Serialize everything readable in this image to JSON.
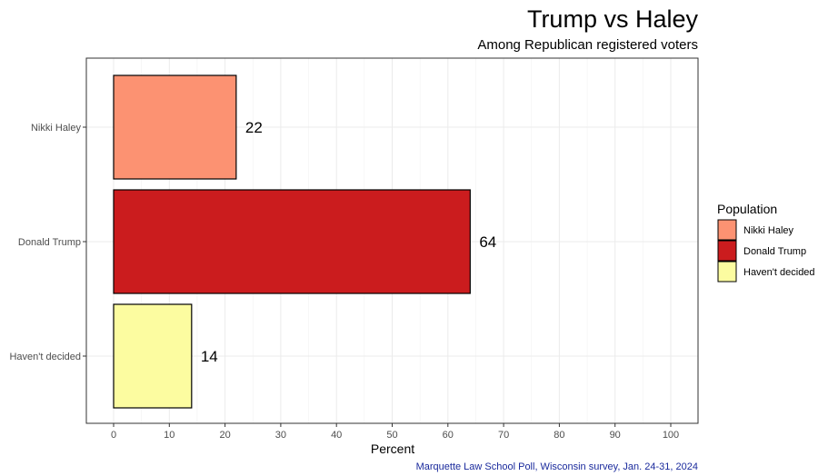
{
  "chart_data": {
    "type": "bar",
    "orientation": "horizontal",
    "title": "Trump vs Haley",
    "subtitle": "Among Republican registered voters",
    "categories": [
      "Nikki Haley",
      "Donald Trump",
      "Haven't decided"
    ],
    "values": [
      22,
      64,
      14
    ],
    "value_labels": [
      "22",
      "64",
      "14"
    ],
    "colors": [
      "#fc9272",
      "#cb1c1e",
      "#fcfca0"
    ],
    "xlabel": "Percent",
    "ylabel": "",
    "xlim": [
      0,
      100
    ],
    "xticks": [
      0,
      10,
      20,
      30,
      40,
      50,
      60,
      70,
      80,
      90,
      100
    ],
    "grid": true,
    "legend": {
      "title": "Population",
      "position": "right",
      "entries": [
        "Nikki Haley",
        "Donald Trump",
        "Haven't decided"
      ]
    },
    "caption": "Marquette Law School Poll, Wisconsin survey, Jan. 24-31, 2024",
    "caption_color": "#1a2a9c"
  }
}
